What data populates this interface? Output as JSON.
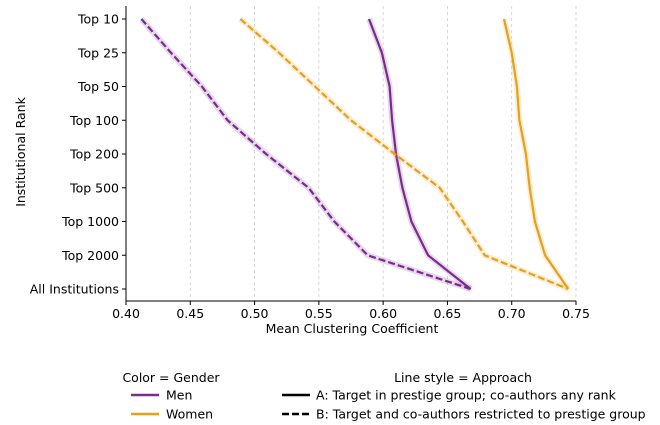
{
  "chart_data": {
    "type": "line",
    "xlabel": "Mean Clustering Coefficient",
    "ylabel": "Institutional Rank",
    "xlim": [
      0.4,
      0.75
    ],
    "x_ticks": [
      "0.40",
      "0.45",
      "0.50",
      "0.55",
      "0.60",
      "0.65",
      "0.70",
      "0.75"
    ],
    "x_tick_values": [
      0.4,
      0.45,
      0.5,
      0.55,
      0.6,
      0.65,
      0.7,
      0.75
    ],
    "categories": [
      "Top 10",
      "Top 25",
      "Top 50",
      "Top 100",
      "Top 200",
      "Top 500",
      "Top 1000",
      "Top 2000",
      "All Institutions"
    ],
    "grid": "vertical",
    "series": [
      {
        "name": "Men",
        "approach": "A",
        "color": "#7b2a8e",
        "dash": "solid",
        "x": [
          0.589,
          0.599,
          0.605,
          0.607,
          0.61,
          0.615,
          0.622,
          0.635,
          0.668
        ]
      },
      {
        "name": "Men",
        "approach": "B",
        "color": "#7b2a8e",
        "dash": "dashed",
        "x": [
          0.412,
          0.435,
          0.459,
          0.479,
          0.509,
          0.542,
          0.562,
          0.588,
          0.668
        ]
      },
      {
        "name": "Women",
        "approach": "A",
        "color": "#e5a01c",
        "dash": "solid",
        "x": [
          0.694,
          0.7,
          0.704,
          0.706,
          0.711,
          0.714,
          0.718,
          0.726,
          0.744
        ]
      },
      {
        "name": "Women",
        "approach": "B",
        "color": "#e5a01c",
        "dash": "dashed",
        "x": [
          0.489,
          0.519,
          0.547,
          0.575,
          0.609,
          0.644,
          0.662,
          0.679,
          0.744
        ]
      }
    ],
    "legend": {
      "placement": "bottom",
      "color_title": "Color = Gender",
      "color_items": [
        {
          "label": "Men",
          "color": "#7b2a8e"
        },
        {
          "label": "Women",
          "color": "#e5a01c"
        }
      ],
      "style_title": "Line style = Approach",
      "style_items": [
        {
          "label": "A: Target in prestige group; co-authors any rank",
          "dash": "solid"
        },
        {
          "label": "B: Target and co-authors restricted to prestige group",
          "dash": "dashed"
        }
      ]
    }
  }
}
